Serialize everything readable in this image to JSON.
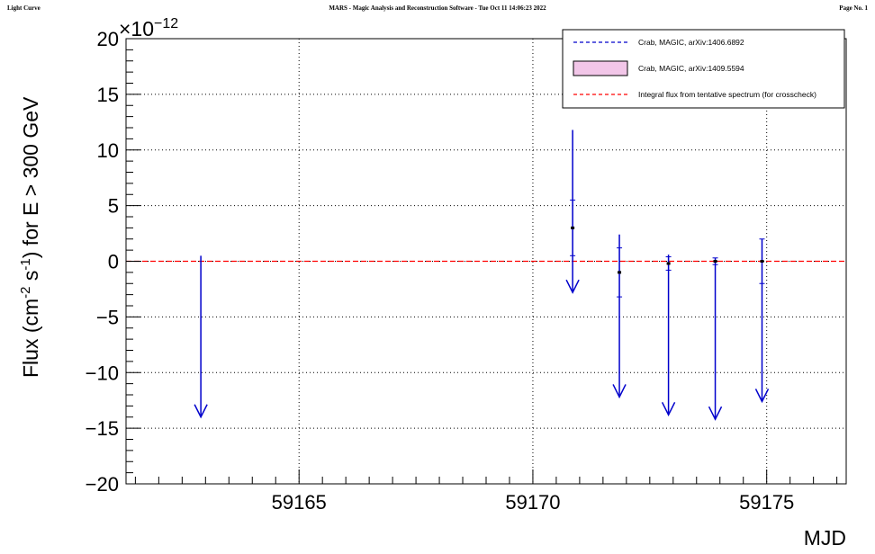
{
  "header": {
    "left": "Light Curve",
    "center": "MARS - Magic Analysis and Reconstruction Software - Tue Oct 11 14:06:23 2022",
    "right": "Page No. 1"
  },
  "chart_data": {
    "type": "scatter",
    "xlabel": "MJD",
    "ylabel_parts": {
      "pre": "Flux (cm",
      "sup1": "-2",
      "mid": " s",
      "sup2": "-1",
      "post": ") for E > 300 GeV"
    },
    "y_exponent": {
      "base": "×10",
      "exp": "−12"
    },
    "xlim": [
      59161.3,
      59176.7
    ],
    "ylim": [
      -20,
      20
    ],
    "x_ticks": [
      59165,
      59170,
      59175
    ],
    "x_tick_labels": [
      "59165",
      "59170",
      "59175"
    ],
    "y_ticks": [
      -20,
      -15,
      -10,
      -5,
      0,
      5,
      10,
      15,
      20
    ],
    "y_tick_labels": [
      "−20",
      "−15",
      "−10",
      "−5",
      "0",
      "5",
      "10",
      "15",
      "20"
    ],
    "grid": true,
    "legend_position": "top-right",
    "legend": [
      {
        "label": "Crab, MAGIC, arXiv:1406.6892",
        "style": "blue-dashed"
      },
      {
        "label": "Crab, MAGIC, arXiv:1409.5594",
        "style": "pink-band"
      },
      {
        "label": "Integral flux from tentative spectrum (for crosscheck)",
        "style": "red-dashed"
      }
    ],
    "reference_line": {
      "y": 0,
      "color": "#ff0000"
    },
    "upper_limits": [
      {
        "x": 59162.9,
        "y_top": 0.5,
        "y_bottom": -14.0
      },
      {
        "x": 59170.85,
        "y_top": 11.8,
        "y_bottom": -2.8
      },
      {
        "x": 59171.85,
        "y_top": 2.4,
        "y_bottom": -12.2
      },
      {
        "x": 59172.9,
        "y_top": 0.6,
        "y_bottom": -13.8
      },
      {
        "x": 59173.9,
        "y_top": 0.3,
        "y_bottom": -14.2
      },
      {
        "x": 59174.9,
        "y_top": 2.0,
        "y_bottom": -12.6
      }
    ],
    "points": [
      {
        "x": 59170.85,
        "y": 3.0,
        "err": 2.5
      },
      {
        "x": 59171.85,
        "y": -1.0,
        "err": 2.2
      },
      {
        "x": 59172.9,
        "y": -0.2,
        "err": 0.6
      },
      {
        "x": 59173.9,
        "y": 0.0,
        "err": 0.3
      },
      {
        "x": 59174.9,
        "y": 0.0,
        "err": 2.0
      }
    ],
    "colors": {
      "data": "#0000cc",
      "reference": "#ff0000",
      "grid": "#000000",
      "band_fill": "#f2c6e8"
    }
  }
}
